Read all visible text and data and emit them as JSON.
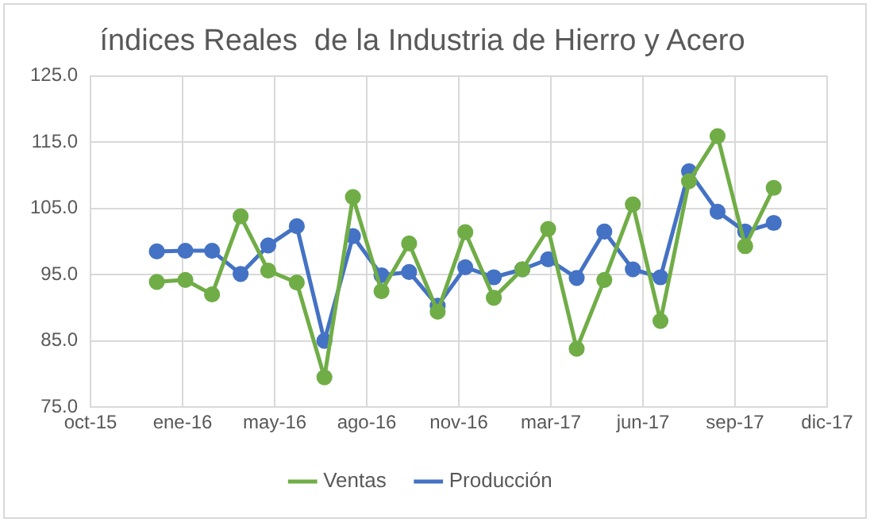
{
  "chart_data": {
    "type": "line",
    "title": "índices Reales  de la Industria de Hierro y Acero",
    "x": [
      "2015-12-31",
      "2016-01-31",
      "2016-02-29",
      "2016-03-31",
      "2016-04-30",
      "2016-05-31",
      "2016-06-30",
      "2016-07-31",
      "2016-08-31",
      "2016-09-30",
      "2016-10-31",
      "2016-11-30",
      "2016-12-31",
      "2017-01-31",
      "2017-02-28",
      "2017-03-31",
      "2017-04-30",
      "2017-05-31",
      "2017-06-30",
      "2017-07-31",
      "2017-08-31",
      "2017-09-30",
      "2017-10-31"
    ],
    "series": [
      {
        "name": "Producción",
        "color": "#4472c4",
        "values": [
          98.5,
          98.6,
          98.6,
          95.1,
          99.4,
          102.3,
          85.0,
          100.8,
          94.9,
          95.4,
          90.3,
          96.1,
          94.6,
          95.8,
          97.3,
          94.5,
          101.5,
          95.8,
          94.6,
          110.6,
          104.5,
          101.5,
          102.8
        ]
      },
      {
        "name": "Ventas",
        "color": "#70ad47",
        "values": [
          93.9,
          94.2,
          92.0,
          103.8,
          95.6,
          93.8,
          79.5,
          106.7,
          92.5,
          99.7,
          89.4,
          101.4,
          91.5,
          95.8,
          101.9,
          83.8,
          94.2,
          105.6,
          88.0,
          109.1,
          115.9,
          99.3,
          108.1
        ]
      }
    ],
    "xlim": [
      "2015-10-20",
      "2017-12-28"
    ],
    "xticks": [
      {
        "value": "2015-10-20",
        "label": "oct-15"
      },
      {
        "value": "2016-01-28",
        "label": "ene-16"
      },
      {
        "value": "2016-05-07",
        "label": "may-16"
      },
      {
        "value": "2016-08-15",
        "label": "ago-16"
      },
      {
        "value": "2016-11-23",
        "label": "nov-16"
      },
      {
        "value": "2017-03-03",
        "label": "mar-17"
      },
      {
        "value": "2017-06-11",
        "label": "jun-17"
      },
      {
        "value": "2017-09-19",
        "label": "sep-17"
      },
      {
        "value": "2017-12-28",
        "label": "dic-17"
      }
    ],
    "ylim": [
      75,
      125
    ],
    "yticks": [
      {
        "value": 75,
        "label": "75.0"
      },
      {
        "value": 85,
        "label": "85.0"
      },
      {
        "value": 95,
        "label": "95.0"
      },
      {
        "value": 105,
        "label": "105.0"
      },
      {
        "value": 115,
        "label": "115.0"
      },
      {
        "value": 125,
        "label": "125.0"
      }
    ],
    "grid": true,
    "legend": "bottom",
    "marker": "circle",
    "line_style": "solid"
  }
}
